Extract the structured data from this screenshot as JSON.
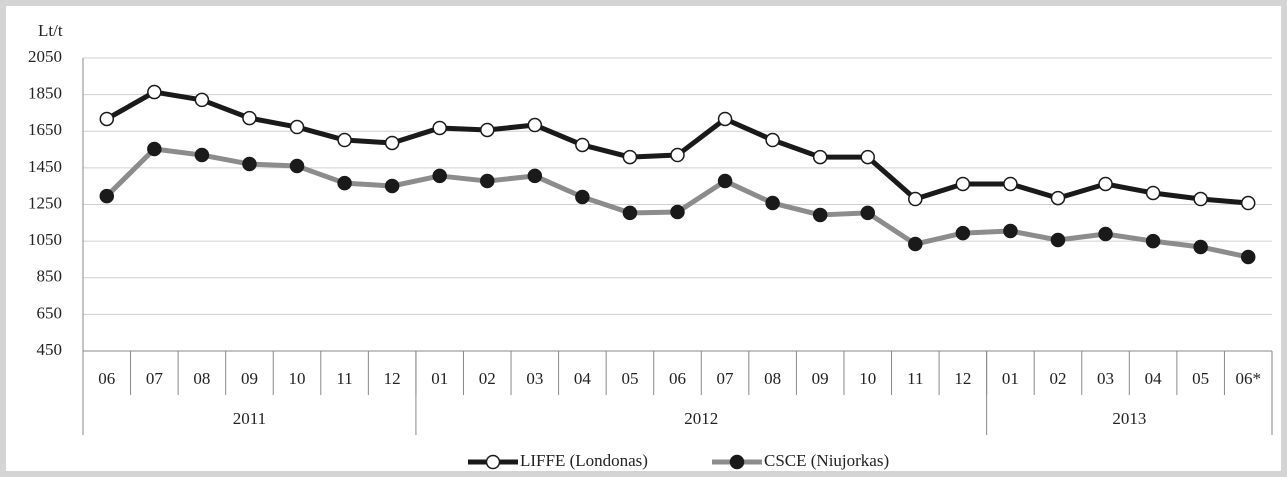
{
  "chart_data": {
    "type": "line",
    "y_unit": "Lt/t",
    "categories": [
      "06",
      "07",
      "08",
      "09",
      "10",
      "11",
      "12",
      "01",
      "02",
      "03",
      "04",
      "05",
      "06",
      "07",
      "08",
      "09",
      "10",
      "11",
      "12",
      "01",
      "02",
      "03",
      "04",
      "05",
      "06*"
    ],
    "x_groups": [
      {
        "label": "2011",
        "size": 7
      },
      {
        "label": "2012",
        "size": 12
      },
      {
        "label": "2013",
        "size": 6
      }
    ],
    "series": [
      {
        "name": "LIFFE (Londonas)",
        "color": "#1a1a1a",
        "marker_fill": "#ffffff",
        "values": [
          1717,
          1864,
          1821,
          1722,
          1673,
          1602,
          1586,
          1668,
          1657,
          1684,
          1575,
          1509,
          1520,
          1717,
          1602,
          1509,
          1509,
          1280,
          1362,
          1362,
          1285,
          1362,
          1313,
          1280,
          1258
        ]
      },
      {
        "name": "CSCE (Niujorkas)",
        "color": "#8c8c8c",
        "marker_fill": "#1a1a1a",
        "values": [
          1296,
          1553,
          1520,
          1471,
          1460,
          1367,
          1351,
          1406,
          1378,
          1406,
          1291,
          1204,
          1209,
          1378,
          1258,
          1193,
          1204,
          1034,
          1094,
          1105,
          1056,
          1089,
          1050,
          1018,
          963
        ]
      }
    ],
    "ylim": [
      450,
      2050
    ],
    "yticks": [
      450,
      650,
      850,
      1050,
      1250,
      1450,
      1650,
      1850,
      2050
    ],
    "grid": true
  }
}
